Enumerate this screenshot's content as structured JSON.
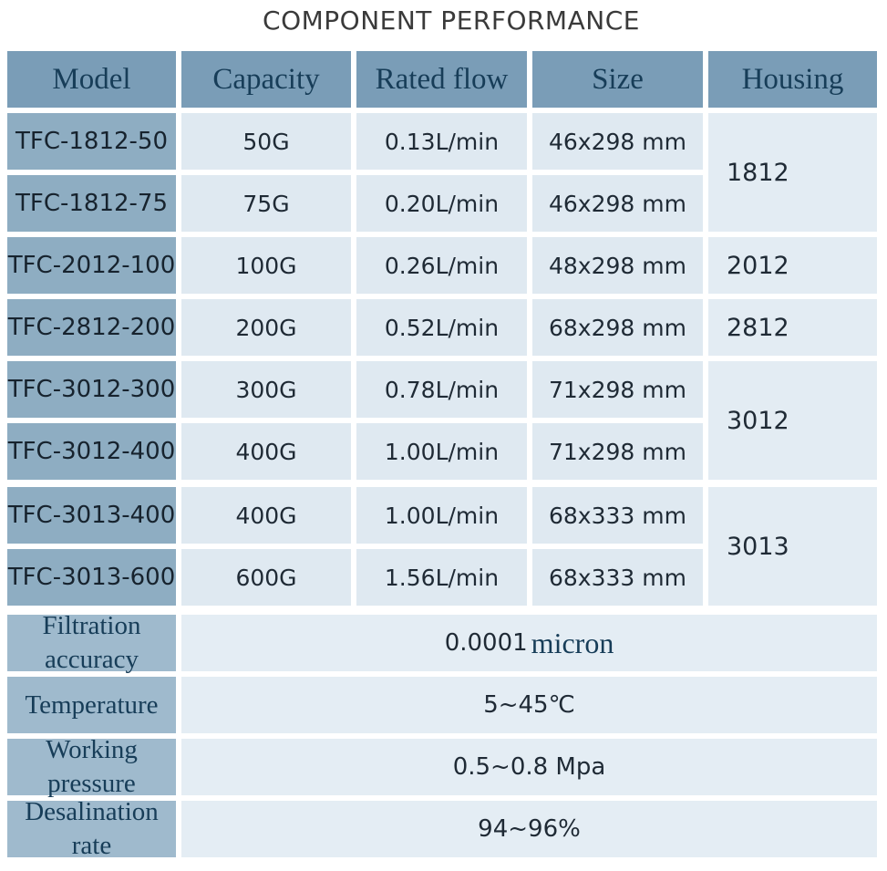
{
  "title": "COMPONENT PERFORMANCE",
  "columns": [
    "Model",
    "Capacity",
    "Rated flow",
    "Size",
    "Housing"
  ],
  "rows": [
    {
      "model": "TFC-1812-50",
      "capacity": "50G",
      "flow": "0.13L/min",
      "size": "46x298 mm"
    },
    {
      "model": "TFC-1812-75",
      "capacity": "75G",
      "flow": "0.20L/min",
      "size": "46x298 mm"
    },
    {
      "model": "TFC-2012-100",
      "capacity": "100G",
      "flow": "0.26L/min",
      "size": "48x298 mm"
    },
    {
      "model": "TFC-2812-200",
      "capacity": "200G",
      "flow": "0.52L/min",
      "size": "68x298 mm"
    },
    {
      "model": "TFC-3012-300",
      "capacity": "300G",
      "flow": "0.78L/min",
      "size": "71x298 mm"
    },
    {
      "model": "TFC-3012-400",
      "capacity": "400G",
      "flow": "1.00L/min",
      "size": "71x298 mm"
    },
    {
      "model": "TFC-3013-400",
      "capacity": "400G",
      "flow": "1.00L/min",
      "size": "68x333 mm"
    },
    {
      "model": "TFC-3013-600",
      "capacity": "600G",
      "flow": "1.56L/min",
      "size": "68x333 mm"
    }
  ],
  "housings": [
    "1812",
    "2012",
    "2812",
    "3012",
    "3013"
  ],
  "specs": [
    {
      "label_line1": "Filtration",
      "label_line2": "accuracy",
      "value": "0.0001",
      "value_suffix": "micron"
    },
    {
      "label_line1": "Temperature",
      "label_line2": "",
      "value": "5~45℃",
      "value_suffix": ""
    },
    {
      "label_line1": "Working",
      "label_line2": "pressure",
      "value": "0.5~0.8 Mpa",
      "value_suffix": ""
    },
    {
      "label_line1": "Desalination",
      "label_line2": "rate",
      "value": "94~96%",
      "value_suffix": ""
    }
  ]
}
